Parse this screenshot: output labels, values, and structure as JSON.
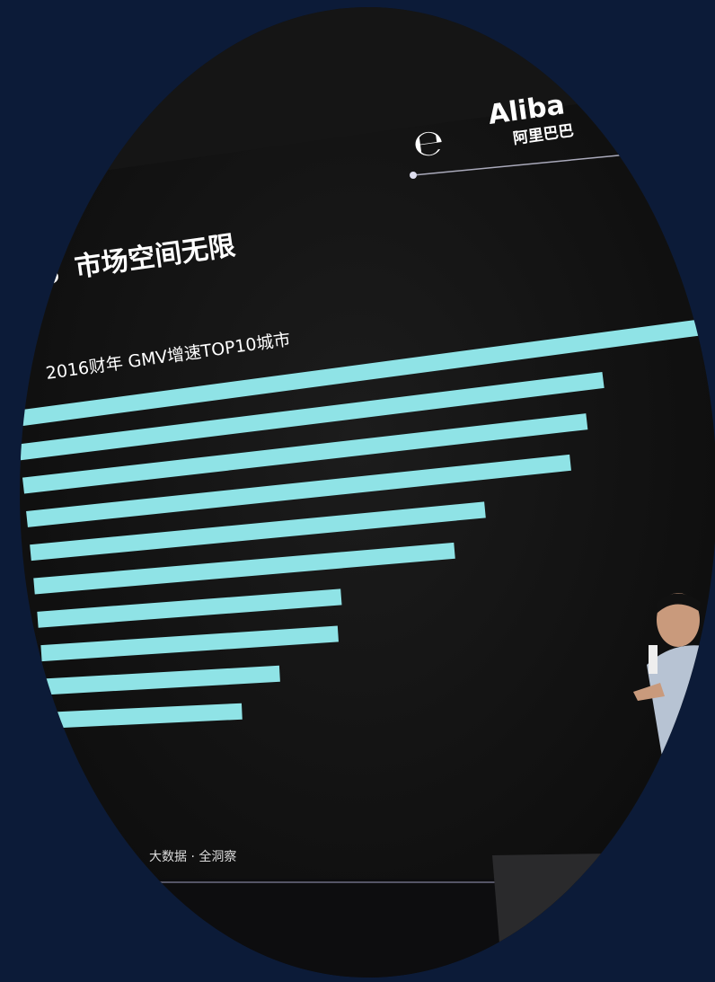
{
  "slide": {
    "logo": {
      "latin": "Aliba",
      "chinese": "阿里巴巴"
    },
    "headline": "，市场空间无限",
    "footer": "大数据 · 全洞察"
  },
  "chart_data": {
    "type": "bar",
    "orientation": "horizontal",
    "title": "2016财年 GMV增速TOP10城市",
    "values": [
      100,
      85,
      82,
      79,
      66,
      61,
      44,
      43,
      34,
      28
    ],
    "color": "#8fe3e6"
  }
}
